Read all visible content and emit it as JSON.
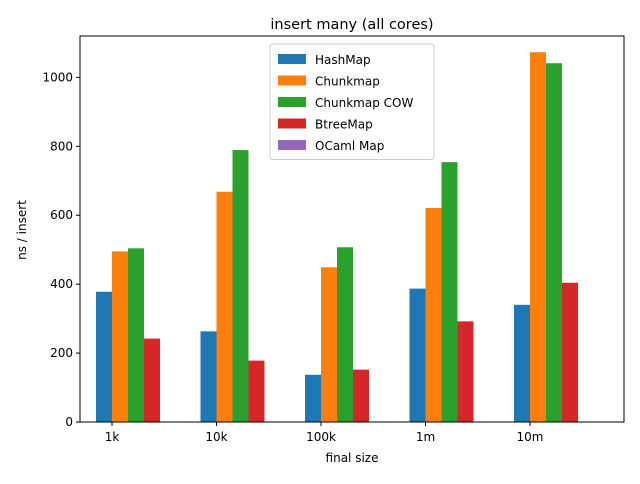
{
  "chart_data": {
    "type": "bar",
    "title": "insert many (all cores)",
    "xlabel": "final size",
    "ylabel": "ns / insert",
    "categories": [
      "1k",
      "10k",
      "100k",
      "1m",
      "10m"
    ],
    "ylim": [
      0,
      1120
    ],
    "yticks": [
      0,
      200,
      400,
      600,
      800,
      1000
    ],
    "grid": false,
    "legend_position": "top-center",
    "series": [
      {
        "name": "HashMap",
        "color": "#1f77b4",
        "values": [
          378,
          263,
          137,
          387,
          340
        ]
      },
      {
        "name": "Chunkmap",
        "color": "#ff7f0e",
        "values": [
          495,
          668,
          449,
          621,
          1073
        ]
      },
      {
        "name": "Chunkmap COW",
        "color": "#2ca02c",
        "values": [
          504,
          789,
          507,
          754,
          1041
        ]
      },
      {
        "name": "BtreeMap",
        "color": "#d62728",
        "values": [
          242,
          178,
          152,
          292,
          404
        ]
      },
      {
        "name": "OCaml Map",
        "color": "#9467bd",
        "values": [
          0,
          0,
          0,
          0,
          0
        ]
      }
    ]
  }
}
